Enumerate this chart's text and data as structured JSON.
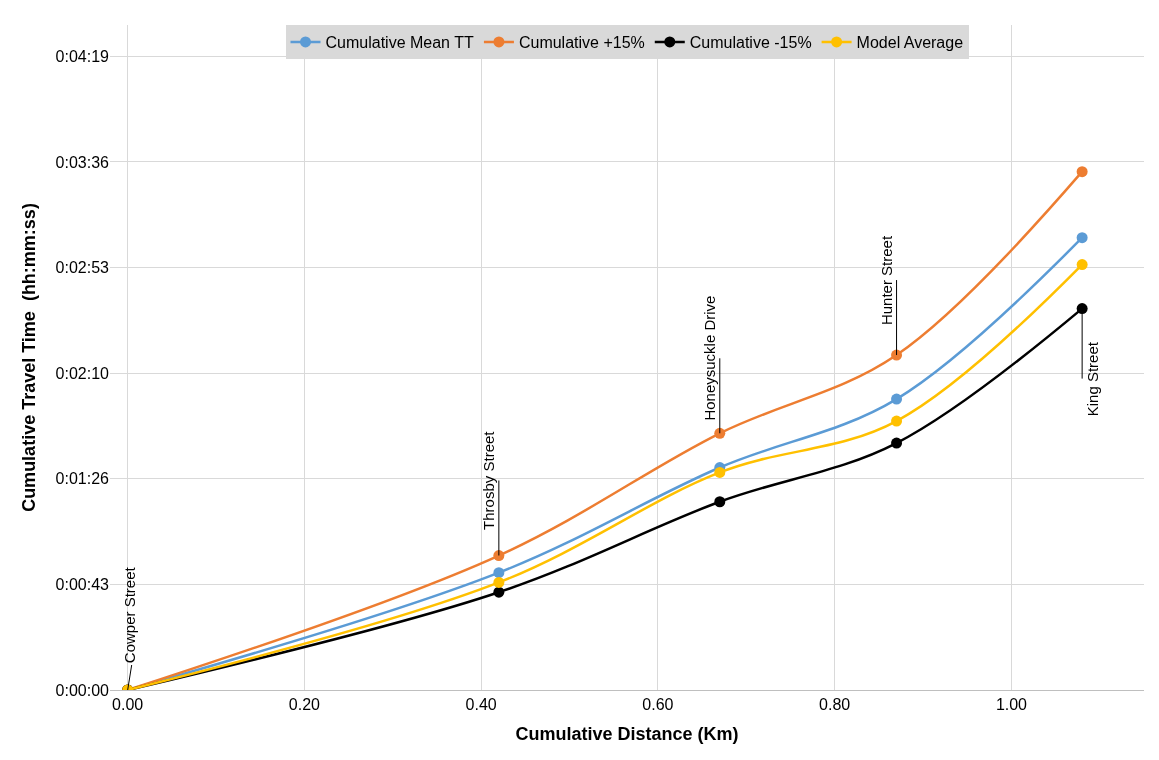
{
  "chart_data": {
    "type": "line",
    "xlabel": "Cumulative Distance (Km)",
    "ylabel": "Cumulative Travel Time  (hh:mm:ss)",
    "x": [
      0,
      0.42,
      0.67,
      0.87,
      1.08
    ],
    "series": [
      {
        "name": "Cumulative Mean TT",
        "color": "#5b9bd5",
        "values": [
          0,
          48,
          91,
          119,
          185
        ]
      },
      {
        "name": "Cumulative +15%",
        "color": "#ed7d31",
        "values": [
          0,
          55,
          105,
          137,
          212
        ]
      },
      {
        "name": "Cumulative -15%",
        "color": "#000000",
        "values": [
          0,
          40,
          77,
          101,
          156
        ]
      },
      {
        "name": "Model Average",
        "color": "#ffc000",
        "values": [
          0,
          44,
          89,
          110,
          174
        ]
      }
    ],
    "xlim": [
      -0.02,
      1.15
    ],
    "xticks": [
      {
        "value": 0,
        "label": "0.00"
      },
      {
        "value": 0.2,
        "label": "0.20"
      },
      {
        "value": 0.4,
        "label": "0.40"
      },
      {
        "value": 0.6,
        "label": "0.60"
      },
      {
        "value": 0.8,
        "label": "0.80"
      },
      {
        "value": 1.0,
        "label": "1.00"
      }
    ],
    "ylim": [
      0,
      272
    ],
    "yticks": [
      {
        "value": 0,
        "label": "0:00:00"
      },
      {
        "value": 43.2,
        "label": "0:00:43"
      },
      {
        "value": 86.4,
        "label": "0:01:26"
      },
      {
        "value": 129.6,
        "label": "0:02:10"
      },
      {
        "value": 172.8,
        "label": "0:02:53"
      },
      {
        "value": 216,
        "label": "0:03:36"
      },
      {
        "value": 259.2,
        "label": "0:04:19"
      }
    ],
    "annotations": [
      {
        "text": "Cowper Street",
        "x": 0,
        "y": 0
      },
      {
        "text": "Throsby Street",
        "x": 0.42,
        "y": 55
      },
      {
        "text": "Honeysuckle Drive",
        "x": 0.67,
        "y": 105
      },
      {
        "text": "Hunter Street",
        "x": 0.87,
        "y": 137
      },
      {
        "text": "King Street",
        "x": 1.08,
        "y": 156
      }
    ],
    "grid": true,
    "legend": "top",
    "marker": "circle",
    "line_style": "solid"
  }
}
